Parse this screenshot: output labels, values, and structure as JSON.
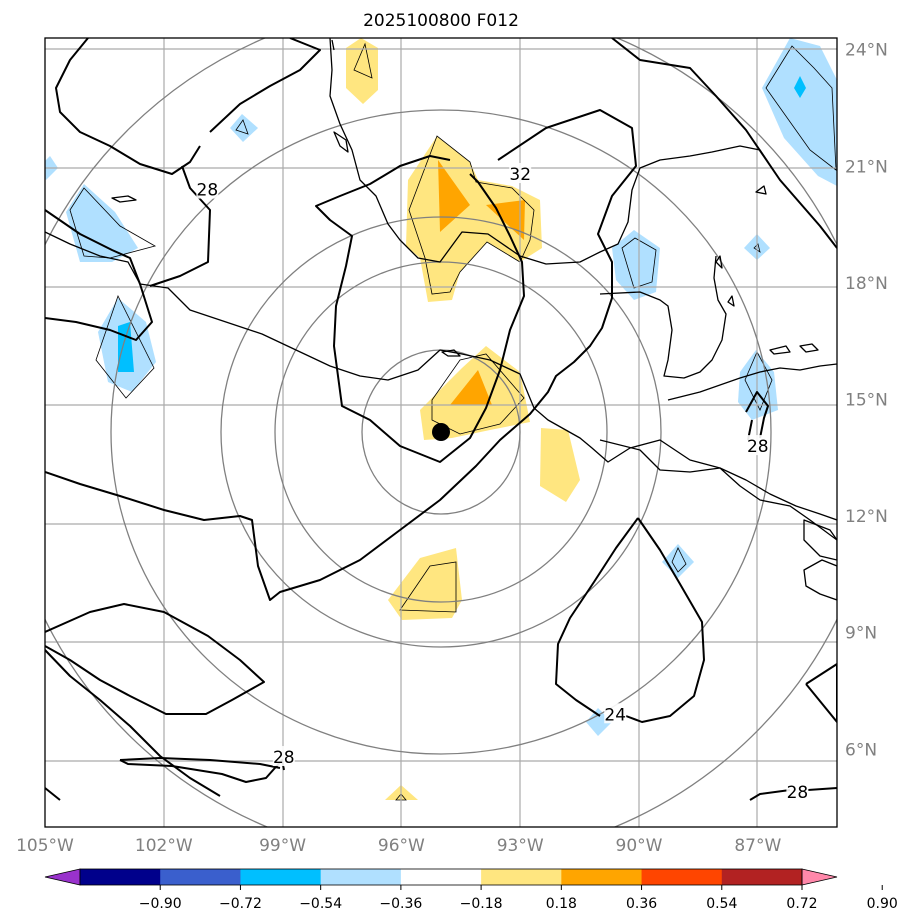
{
  "title": "2025100800 F012",
  "lon_ticks": [
    {
      "lon": -105,
      "label": "105°W"
    },
    {
      "lon": -102,
      "label": "102°W"
    },
    {
      "lon": -99,
      "label": "99°W"
    },
    {
      "lon": -96,
      "label": "96°W"
    },
    {
      "lon": -93,
      "label": "93°W"
    },
    {
      "lon": -90,
      "label": "90°W"
    },
    {
      "lon": -87,
      "label": "87°W"
    }
  ],
  "lat_ticks": [
    {
      "lat": 24,
      "label": "24°N"
    },
    {
      "lat": 21,
      "label": "21°N"
    },
    {
      "lat": 18,
      "label": "18°N"
    },
    {
      "lat": 15,
      "label": "15°N"
    },
    {
      "lat": 12,
      "label": "12°N"
    },
    {
      "lat": 9,
      "label": "9°N"
    },
    {
      "lat": 6,
      "label": "6°N"
    }
  ],
  "extent": {
    "lon_min": -105,
    "lon_max": -85,
    "lat_min": 4,
    "lat_max": 24.3
  },
  "colorbar": {
    "ticks": [
      "−0.90",
      "−0.72",
      "−0.54",
      "−0.36",
      "−0.18",
      "0.18",
      "0.36",
      "0.54",
      "0.72",
      "0.90"
    ],
    "colors": [
      "#9932cc",
      "#00008b",
      "#3a5fcd",
      "#00bfff",
      "#b0e0ff",
      "#ffffff",
      "#ffe680",
      "#ffa500",
      "#ff4500",
      "#b22222",
      "#ff88aa"
    ]
  },
  "contour_labels": [
    {
      "text": "28",
      "lon": -100.9,
      "lat": 20.4
    },
    {
      "text": "32",
      "lon": -93.0,
      "lat": 20.8
    },
    {
      "text": "28",
      "lon": -87.0,
      "lat": 13.8
    },
    {
      "text": "24",
      "lon": -90.6,
      "lat": 6.9
    },
    {
      "text": "28",
      "lon": -98.97,
      "lat": 5.8
    },
    {
      "text": "28",
      "lon": -86.0,
      "lat": 4.9
    }
  ],
  "storm_center": {
    "lon": -95.0,
    "lat": 14.3
  },
  "range_rings_deg": [
    2,
    4,
    6,
    8,
    10
  ]
}
